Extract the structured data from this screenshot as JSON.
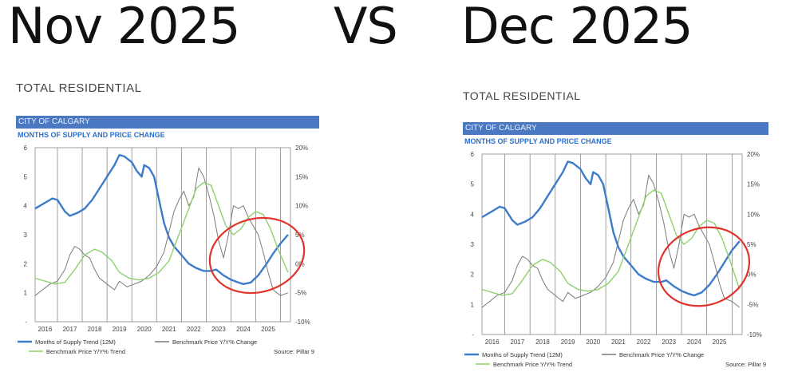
{
  "header": {
    "left_title": "Nov 2025",
    "vs": "VS",
    "right_title": "Dec 2025"
  },
  "section_title": "TOTAL RESIDENTIAL",
  "city": "CITY OF CALGARY",
  "chart_subtitle": "MONTHS OF SUPPLY AND PRICE CHANGE",
  "source": "Source: Pillar 9",
  "colors": {
    "months_supply": "#3d7cc9",
    "price_change": "#7a7a7a",
    "price_trend": "#8ed16e",
    "annotation": "#e0332b",
    "city_bar": "#4a78c2"
  },
  "chart_data": [
    {
      "type": "line",
      "panel": "Nov 2025",
      "title": "MONTHS OF SUPPLY AND PRICE CHANGE",
      "x_ticks": [
        "2016",
        "2017",
        "2018",
        "2019",
        "2020",
        "2021",
        "2022",
        "2023",
        "2024",
        "2025"
      ],
      "xlim": [
        2015.6,
        2025.9
      ],
      "y_left_ticks": [
        "1",
        "2",
        "3",
        "4",
        "5",
        "6"
      ],
      "ylim_left": [
        0,
        6
      ],
      "y_right_ticks": [
        "-10%",
        "-5%",
        "0%",
        "5%",
        "10%",
        "15%",
        "20%"
      ],
      "ylim_right": [
        -10,
        20
      ],
      "grid": "vertical",
      "legend": "bottom",
      "series": [
        {
          "name": "Months of Supply Trend (12M)",
          "axis": "left",
          "x": [
            2015.6,
            2016.0,
            2016.3,
            2016.5,
            2016.8,
            2017.0,
            2017.3,
            2017.6,
            2017.9,
            2018.2,
            2018.5,
            2018.8,
            2019.0,
            2019.2,
            2019.5,
            2019.7,
            2019.9,
            2020.0,
            2020.2,
            2020.4,
            2020.6,
            2020.8,
            2021.0,
            2021.2,
            2021.5,
            2021.8,
            2022.1,
            2022.4,
            2022.7,
            2022.9,
            2023.2,
            2023.5,
            2023.8,
            2024.0,
            2024.3,
            2024.6,
            2024.9,
            2025.2,
            2025.5,
            2025.8
          ],
          "values": [
            3.9,
            4.1,
            4.25,
            4.2,
            3.8,
            3.65,
            3.75,
            3.9,
            4.2,
            4.6,
            5.0,
            5.4,
            5.75,
            5.7,
            5.5,
            5.2,
            5.0,
            5.4,
            5.3,
            5.0,
            4.2,
            3.4,
            2.9,
            2.6,
            2.3,
            2.0,
            1.85,
            1.75,
            1.75,
            1.8,
            1.6,
            1.45,
            1.35,
            1.3,
            1.35,
            1.6,
            1.95,
            2.35,
            2.7,
            3.0
          ]
        },
        {
          "name": "Benchmark Price Y/Y% Change",
          "axis": "right",
          "x": [
            2015.6,
            2015.9,
            2016.2,
            2016.5,
            2016.8,
            2017.0,
            2017.2,
            2017.4,
            2017.6,
            2017.8,
            2018.0,
            2018.2,
            2018.5,
            2018.8,
            2019.0,
            2019.3,
            2019.6,
            2019.9,
            2020.2,
            2020.5,
            2020.8,
            2021.0,
            2021.2,
            2021.4,
            2021.6,
            2021.8,
            2022.0,
            2022.2,
            2022.4,
            2022.6,
            2022.8,
            2023.0,
            2023.2,
            2023.4,
            2023.6,
            2023.8,
            2024.0,
            2024.2,
            2024.4,
            2024.6,
            2024.8,
            2025.0,
            2025.2,
            2025.5,
            2025.8
          ],
          "values": [
            -5.5,
            -4.5,
            -3.5,
            -3.0,
            -1.0,
            1.5,
            3.0,
            2.5,
            1.5,
            1.0,
            -1.0,
            -2.5,
            -3.5,
            -4.5,
            -3.0,
            -4.0,
            -3.5,
            -3.0,
            -2.0,
            -0.5,
            2.0,
            5.5,
            9.0,
            11.0,
            12.5,
            10.0,
            11.5,
            16.5,
            15.0,
            12.0,
            8.5,
            4.0,
            1.0,
            5.0,
            10.0,
            9.5,
            10.0,
            8.0,
            6.5,
            5.0,
            2.0,
            -1.5,
            -4.5,
            -5.5,
            -5.0
          ]
        },
        {
          "name": "Benchmark Price Y/Y% Trend",
          "axis": "right",
          "x": [
            2015.6,
            2016.0,
            2016.4,
            2016.8,
            2017.2,
            2017.6,
            2018.0,
            2018.3,
            2018.7,
            2019.0,
            2019.4,
            2019.8,
            2020.2,
            2020.6,
            2021.0,
            2021.4,
            2021.8,
            2022.1,
            2022.4,
            2022.7,
            2023.0,
            2023.3,
            2023.6,
            2023.9,
            2024.2,
            2024.5,
            2024.8,
            2025.1,
            2025.4,
            2025.8
          ],
          "values": [
            -2.5,
            -3.0,
            -3.5,
            -3.2,
            -1.0,
            1.5,
            2.5,
            2.0,
            0.5,
            -1.5,
            -2.5,
            -2.8,
            -2.5,
            -1.5,
            0.5,
            5.0,
            9.5,
            13.0,
            14.0,
            13.5,
            10.0,
            6.5,
            5.0,
            6.0,
            8.0,
            9.0,
            8.5,
            6.0,
            2.5,
            -1.5
          ]
        }
      ]
    },
    {
      "type": "line",
      "panel": "Dec 2025",
      "title": "MONTHS OF SUPPLY AND PRICE CHANGE",
      "x_ticks": [
        "2016",
        "2017",
        "2018",
        "2019",
        "2020",
        "2021",
        "2022",
        "2023",
        "2024",
        "2025"
      ],
      "xlim": [
        2015.6,
        2025.9
      ],
      "y_left_ticks": [
        "1",
        "2",
        "3",
        "4",
        "5",
        "6"
      ],
      "ylim_left": [
        0,
        6
      ],
      "y_right_ticks": [
        "-10%",
        "-5%",
        "0%",
        "5%",
        "10%",
        "15%",
        "20%"
      ],
      "ylim_right": [
        -10,
        20
      ],
      "grid": "vertical",
      "legend": "bottom",
      "series": [
        {
          "name": "Months of Supply Trend (12M)",
          "axis": "left",
          "x": [
            2015.6,
            2016.0,
            2016.3,
            2016.5,
            2016.8,
            2017.0,
            2017.3,
            2017.6,
            2017.9,
            2018.2,
            2018.5,
            2018.8,
            2019.0,
            2019.2,
            2019.5,
            2019.7,
            2019.9,
            2020.0,
            2020.2,
            2020.4,
            2020.6,
            2020.8,
            2021.0,
            2021.2,
            2021.5,
            2021.8,
            2022.1,
            2022.4,
            2022.7,
            2022.9,
            2023.2,
            2023.5,
            2023.8,
            2024.0,
            2024.3,
            2024.6,
            2024.9,
            2025.2,
            2025.5,
            2025.8
          ],
          "values": [
            3.9,
            4.1,
            4.25,
            4.2,
            3.8,
            3.65,
            3.75,
            3.9,
            4.2,
            4.6,
            5.0,
            5.4,
            5.75,
            5.7,
            5.5,
            5.2,
            5.0,
            5.4,
            5.3,
            5.0,
            4.2,
            3.4,
            2.9,
            2.6,
            2.3,
            2.0,
            1.85,
            1.75,
            1.75,
            1.8,
            1.6,
            1.45,
            1.35,
            1.3,
            1.4,
            1.65,
            2.0,
            2.4,
            2.8,
            3.1
          ]
        },
        {
          "name": "Benchmark Price Y/Y% Change",
          "axis": "right",
          "x": [
            2015.6,
            2015.9,
            2016.2,
            2016.5,
            2016.8,
            2017.0,
            2017.2,
            2017.4,
            2017.6,
            2017.8,
            2018.0,
            2018.2,
            2018.5,
            2018.8,
            2019.0,
            2019.3,
            2019.6,
            2019.9,
            2020.2,
            2020.5,
            2020.8,
            2021.0,
            2021.2,
            2021.4,
            2021.6,
            2021.8,
            2022.0,
            2022.2,
            2022.4,
            2022.6,
            2022.8,
            2023.0,
            2023.2,
            2023.4,
            2023.6,
            2023.8,
            2024.0,
            2024.2,
            2024.4,
            2024.6,
            2024.8,
            2025.0,
            2025.2,
            2025.5,
            2025.8
          ],
          "values": [
            -5.5,
            -4.5,
            -3.5,
            -3.0,
            -1.0,
            1.5,
            3.0,
            2.5,
            1.5,
            1.0,
            -1.0,
            -2.5,
            -3.5,
            -4.5,
            -3.0,
            -4.0,
            -3.5,
            -3.0,
            -2.0,
            -0.5,
            2.0,
            5.5,
            9.0,
            11.0,
            12.5,
            10.0,
            11.5,
            16.5,
            15.0,
            12.0,
            8.5,
            4.0,
            1.0,
            5.0,
            10.0,
            9.5,
            10.0,
            8.0,
            6.5,
            5.0,
            2.0,
            -1.5,
            -4.0,
            -4.5,
            -5.5
          ]
        },
        {
          "name": "Benchmark Price Y/Y% Trend",
          "axis": "right",
          "x": [
            2015.6,
            2016.0,
            2016.4,
            2016.8,
            2017.2,
            2017.6,
            2018.0,
            2018.3,
            2018.7,
            2019.0,
            2019.4,
            2019.8,
            2020.2,
            2020.6,
            2021.0,
            2021.4,
            2021.8,
            2022.1,
            2022.4,
            2022.7,
            2023.0,
            2023.3,
            2023.6,
            2023.9,
            2024.2,
            2024.5,
            2024.8,
            2025.1,
            2025.4,
            2025.8
          ],
          "values": [
            -2.5,
            -3.0,
            -3.5,
            -3.2,
            -1.0,
            1.5,
            2.5,
            2.0,
            0.5,
            -1.5,
            -2.5,
            -2.8,
            -2.5,
            -1.5,
            0.5,
            5.0,
            9.5,
            13.0,
            14.0,
            13.5,
            10.0,
            6.5,
            5.0,
            6.0,
            8.0,
            9.0,
            8.5,
            6.0,
            2.5,
            -2.5
          ]
        }
      ]
    }
  ]
}
